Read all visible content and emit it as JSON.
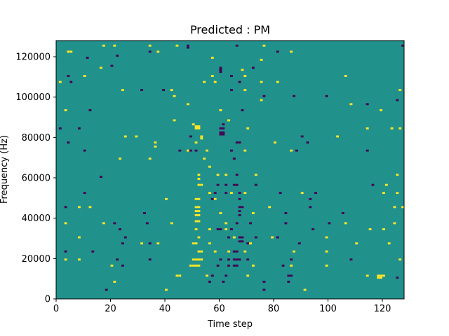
{
  "chart_data": {
    "type": "heatmap",
    "title": "Predicted : PM",
    "xlabel": "Time step",
    "ylabel": "Frequency (Hz)",
    "xlim": [
      0,
      128
    ],
    "ylim": [
      0,
      128000
    ],
    "xticks": [
      0,
      20,
      40,
      60,
      80,
      100,
      120
    ],
    "yticks": [
      0,
      20000,
      40000,
      60000,
      80000,
      100000,
      120000
    ],
    "grid": false,
    "legend": "none",
    "colors": {
      "background": "#21918c",
      "high": "#fde725",
      "low": "#440154"
    },
    "n_time_steps": 128,
    "n_freq_bins": 128,
    "bin_width_hz": 1000,
    "cells": [
      {
        "t": 17,
        "f": 125,
        "v": 1
      },
      {
        "t": 21,
        "f": 125,
        "v": 1
      },
      {
        "t": 34,
        "f": 125,
        "v": 1
      },
      {
        "t": 44,
        "f": 125,
        "v": 1
      },
      {
        "t": 48,
        "f": 125,
        "v": -1
      },
      {
        "t": 48,
        "f": 124,
        "v": -1
      },
      {
        "t": 66,
        "f": 125,
        "v": -1
      },
      {
        "t": 76,
        "f": 125,
        "v": 1
      },
      {
        "t": 127,
        "f": 125,
        "v": -1
      },
      {
        "t": 4,
        "f": 122,
        "v": 1
      },
      {
        "t": 5,
        "f": 122,
        "v": 1
      },
      {
        "t": 34,
        "f": 122,
        "v": -1
      },
      {
        "t": 37,
        "f": 122,
        "v": 1
      },
      {
        "t": 81,
        "f": 122,
        "v": -1
      },
      {
        "t": 86,
        "f": 122,
        "v": 1
      },
      {
        "t": 22,
        "f": 120,
        "v": -1
      },
      {
        "t": 11,
        "f": 119,
        "v": -1
      },
      {
        "t": 57,
        "f": 119,
        "v": 1
      },
      {
        "t": 75,
        "f": 118,
        "v": 1
      },
      {
        "t": 20,
        "f": 115,
        "v": -1
      },
      {
        "t": 16,
        "f": 114,
        "v": 1
      },
      {
        "t": 60,
        "f": 114,
        "v": -1
      },
      {
        "t": 60,
        "f": 113,
        "v": -1
      },
      {
        "t": 60,
        "f": 112,
        "v": -1
      },
      {
        "t": 68,
        "f": 113,
        "v": 1
      },
      {
        "t": 72,
        "f": 114,
        "v": -1
      },
      {
        "t": 4,
        "f": 110,
        "v": -1
      },
      {
        "t": 10,
        "f": 110,
        "v": 1
      },
      {
        "t": 57,
        "f": 110,
        "v": 1
      },
      {
        "t": 64,
        "f": 110,
        "v": -1
      },
      {
        "t": 69,
        "f": 110,
        "v": 1
      },
      {
        "t": 106,
        "f": 110,
        "v": 1
      },
      {
        "t": 1,
        "f": 107,
        "v": 1
      },
      {
        "t": 5,
        "f": 107,
        "v": -1
      },
      {
        "t": 54,
        "f": 107,
        "v": 1
      },
      {
        "t": 58,
        "f": 107,
        "v": 1
      },
      {
        "t": 67,
        "f": 107,
        "v": -1
      },
      {
        "t": 75,
        "f": 107,
        "v": 1
      },
      {
        "t": 81,
        "f": 107,
        "v": 1
      },
      {
        "t": 24,
        "f": 103,
        "v": 1
      },
      {
        "t": 31,
        "f": 103,
        "v": -1
      },
      {
        "t": 39,
        "f": 103,
        "v": -1
      },
      {
        "t": 42,
        "f": 103,
        "v": 1
      },
      {
        "t": 64,
        "f": 103,
        "v": -1
      },
      {
        "t": 69,
        "f": 103,
        "v": 1
      },
      {
        "t": 126,
        "f": 103,
        "v": 1
      },
      {
        "t": 43,
        "f": 100,
        "v": 1
      },
      {
        "t": 76,
        "f": 100,
        "v": -1
      },
      {
        "t": 87,
        "f": 100,
        "v": -1
      },
      {
        "t": 99,
        "f": 100,
        "v": -1
      },
      {
        "t": 75,
        "f": 98,
        "v": 1
      },
      {
        "t": 125,
        "f": 98,
        "v": -1
      },
      {
        "t": 48,
        "f": 96,
        "v": 1
      },
      {
        "t": 108,
        "f": 96,
        "v": 1
      },
      {
        "t": 114,
        "f": 96,
        "v": -1
      },
      {
        "t": 3,
        "f": 93,
        "v": 1
      },
      {
        "t": 12,
        "f": 93,
        "v": -1
      },
      {
        "t": 60,
        "f": 93,
        "v": 1
      },
      {
        "t": 68,
        "f": 93,
        "v": -1
      },
      {
        "t": 119,
        "f": 93,
        "v": 1
      },
      {
        "t": 43,
        "f": 88,
        "v": 1
      },
      {
        "t": 63,
        "f": 88,
        "v": 1
      },
      {
        "t": 50,
        "f": 86,
        "v": 1
      },
      {
        "t": 61,
        "f": 86,
        "v": -1
      },
      {
        "t": 1,
        "f": 84,
        "v": -1
      },
      {
        "t": 8,
        "f": 84,
        "v": -1
      },
      {
        "t": 51,
        "f": 85,
        "v": 1
      },
      {
        "t": 52,
        "f": 85,
        "v": 1
      },
      {
        "t": 51,
        "f": 84,
        "v": 1
      },
      {
        "t": 52,
        "f": 84,
        "v": 1
      },
      {
        "t": 60,
        "f": 84,
        "v": -1
      },
      {
        "t": 61,
        "f": 84,
        "v": -1
      },
      {
        "t": 60,
        "f": 82,
        "v": -1
      },
      {
        "t": 61,
        "f": 82,
        "v": -1
      },
      {
        "t": 60,
        "f": 81,
        "v": -1
      },
      {
        "t": 61,
        "f": 81,
        "v": -1
      },
      {
        "t": 70,
        "f": 84,
        "v": 1
      },
      {
        "t": 114,
        "f": 84,
        "v": 1
      },
      {
        "t": 123,
        "f": 84,
        "v": 1
      },
      {
        "t": 126,
        "f": 84,
        "v": 1
      },
      {
        "t": 25,
        "f": 80,
        "v": 1
      },
      {
        "t": 29,
        "f": 80,
        "v": 1
      },
      {
        "t": 49,
        "f": 80,
        "v": -1
      },
      {
        "t": 53,
        "f": 80,
        "v": 1
      },
      {
        "t": 53,
        "f": 79,
        "v": 1
      },
      {
        "t": 90,
        "f": 80,
        "v": -1
      },
      {
        "t": 103,
        "f": 80,
        "v": 1
      },
      {
        "t": 4,
        "f": 77,
        "v": -1
      },
      {
        "t": 36,
        "f": 77,
        "v": 1
      },
      {
        "t": 36,
        "f": 75,
        "v": 1
      },
      {
        "t": 51,
        "f": 77,
        "v": 1
      },
      {
        "t": 66,
        "f": 77,
        "v": -1
      },
      {
        "t": 67,
        "f": 77,
        "v": -1
      },
      {
        "t": 80,
        "f": 77,
        "v": 1
      },
      {
        "t": 92,
        "f": 77,
        "v": -1
      },
      {
        "t": 10,
        "f": 73,
        "v": -1
      },
      {
        "t": 45,
        "f": 73,
        "v": -1
      },
      {
        "t": 48,
        "f": 73,
        "v": 1
      },
      {
        "t": 49,
        "f": 73,
        "v": -1
      },
      {
        "t": 51,
        "f": 73,
        "v": -1
      },
      {
        "t": 55,
        "f": 73,
        "v": 1
      },
      {
        "t": 64,
        "f": 73,
        "v": -1
      },
      {
        "t": 69,
        "f": 73,
        "v": 1
      },
      {
        "t": 86,
        "f": 73,
        "v": 1
      },
      {
        "t": 88,
        "f": 73,
        "v": -1
      },
      {
        "t": 114,
        "f": 73,
        "v": -1
      },
      {
        "t": 23,
        "f": 69,
        "v": 1
      },
      {
        "t": 34,
        "f": 69,
        "v": 1
      },
      {
        "t": 54,
        "f": 69,
        "v": 1
      },
      {
        "t": 65,
        "f": 69,
        "v": -1
      },
      {
        "t": 56,
        "f": 65,
        "v": 1
      },
      {
        "t": 52,
        "f": 61,
        "v": 1
      },
      {
        "t": 59,
        "f": 61,
        "v": 1
      },
      {
        "t": 62,
        "f": 61,
        "v": 1
      },
      {
        "t": 66,
        "f": 61,
        "v": -1
      },
      {
        "t": 73,
        "f": 61,
        "v": 1
      },
      {
        "t": 125,
        "f": 61,
        "v": 1
      },
      {
        "t": 16,
        "f": 60,
        "v": -1
      },
      {
        "t": 52,
        "f": 59,
        "v": 1
      },
      {
        "t": 53,
        "f": 56,
        "v": 1
      },
      {
        "t": 52,
        "f": 56,
        "v": 1
      },
      {
        "t": 59,
        "f": 56,
        "v": -1
      },
      {
        "t": 62,
        "f": 56,
        "v": -1
      },
      {
        "t": 65,
        "f": 56,
        "v": -1
      },
      {
        "t": 66,
        "f": 56,
        "v": -1
      },
      {
        "t": 73,
        "f": 56,
        "v": -1
      },
      {
        "t": 116,
        "f": 56,
        "v": -1
      },
      {
        "t": 121,
        "f": 56,
        "v": 1
      },
      {
        "t": 10,
        "f": 52,
        "v": -1
      },
      {
        "t": 56,
        "f": 52,
        "v": 1
      },
      {
        "t": 58,
        "f": 52,
        "v": -1
      },
      {
        "t": 62,
        "f": 52,
        "v": -1
      },
      {
        "t": 64,
        "f": 52,
        "v": 1
      },
      {
        "t": 67,
        "f": 52,
        "v": -1
      },
      {
        "t": 69,
        "f": 52,
        "v": 1
      },
      {
        "t": 82,
        "f": 52,
        "v": -1
      },
      {
        "t": 90,
        "f": 52,
        "v": 1
      },
      {
        "t": 95,
        "f": 52,
        "v": -1
      },
      {
        "t": 120,
        "f": 52,
        "v": 1
      },
      {
        "t": 125,
        "f": 52,
        "v": 1
      },
      {
        "t": 40,
        "f": 49,
        "v": 1
      },
      {
        "t": 51,
        "f": 49,
        "v": 1
      },
      {
        "t": 52,
        "f": 49,
        "v": 1
      },
      {
        "t": 57,
        "f": 49,
        "v": -1
      },
      {
        "t": 58,
        "f": 49,
        "v": 1
      },
      {
        "t": 67,
        "f": 49,
        "v": -1
      },
      {
        "t": 93,
        "f": 49,
        "v": -1
      },
      {
        "t": 3,
        "f": 45,
        "v": -1
      },
      {
        "t": 8,
        "f": 45,
        "v": 1
      },
      {
        "t": 12,
        "f": 45,
        "v": 1
      },
      {
        "t": 51,
        "f": 45,
        "v": 1
      },
      {
        "t": 52,
        "f": 45,
        "v": 1
      },
      {
        "t": 51,
        "f": 43,
        "v": 1
      },
      {
        "t": 52,
        "f": 43,
        "v": 1
      },
      {
        "t": 51,
        "f": 41,
        "v": 1
      },
      {
        "t": 52,
        "f": 41,
        "v": 1
      },
      {
        "t": 67,
        "f": 45,
        "v": -1
      },
      {
        "t": 68,
        "f": 45,
        "v": -1
      },
      {
        "t": 67,
        "f": 43,
        "v": -1
      },
      {
        "t": 67,
        "f": 41,
        "v": -1
      },
      {
        "t": 78,
        "f": 45,
        "v": 1
      },
      {
        "t": 93,
        "f": 45,
        "v": -1
      },
      {
        "t": 124,
        "f": 45,
        "v": 1
      },
      {
        "t": 127,
        "f": 45,
        "v": 1
      },
      {
        "t": 32,
        "f": 42,
        "v": -1
      },
      {
        "t": 60,
        "f": 42,
        "v": 1
      },
      {
        "t": 72,
        "f": 42,
        "v": 1
      },
      {
        "t": 84,
        "f": 42,
        "v": -1
      },
      {
        "t": 105,
        "f": 42,
        "v": -1
      },
      {
        "t": 3,
        "f": 37,
        "v": 1
      },
      {
        "t": 17,
        "f": 37,
        "v": 1
      },
      {
        "t": 21,
        "f": 37,
        "v": -1
      },
      {
        "t": 33,
        "f": 37,
        "v": -1
      },
      {
        "t": 42,
        "f": 37,
        "v": 1
      },
      {
        "t": 51,
        "f": 38,
        "v": 1
      },
      {
        "t": 52,
        "f": 38,
        "v": 1
      },
      {
        "t": 62,
        "f": 37,
        "v": 1
      },
      {
        "t": 66,
        "f": 37,
        "v": -1
      },
      {
        "t": 71,
        "f": 37,
        "v": -1
      },
      {
        "t": 84,
        "f": 37,
        "v": -1
      },
      {
        "t": 100,
        "f": 37,
        "v": -1
      },
      {
        "t": 106,
        "f": 37,
        "v": 1
      },
      {
        "t": 124,
        "f": 37,
        "v": 1
      },
      {
        "t": 23,
        "f": 34,
        "v": -1
      },
      {
        "t": 51,
        "f": 34,
        "v": 1
      },
      {
        "t": 56,
        "f": 34,
        "v": 1
      },
      {
        "t": 59,
        "f": 34,
        "v": -1
      },
      {
        "t": 60,
        "f": 34,
        "v": -1
      },
      {
        "t": 62,
        "f": 34,
        "v": 1
      },
      {
        "t": 64,
        "f": 34,
        "v": -1
      },
      {
        "t": 94,
        "f": 34,
        "v": -1
      },
      {
        "t": 115,
        "f": 34,
        "v": 1
      },
      {
        "t": 120,
        "f": 34,
        "v": 1
      },
      {
        "t": 8,
        "f": 30,
        "v": 1
      },
      {
        "t": 25,
        "f": 30,
        "v": -1
      },
      {
        "t": 52,
        "f": 30,
        "v": 1
      },
      {
        "t": 63,
        "f": 30,
        "v": -1
      },
      {
        "t": 65,
        "f": 30,
        "v": 1
      },
      {
        "t": 67,
        "f": 30,
        "v": -1
      },
      {
        "t": 68,
        "f": 30,
        "v": -1
      },
      {
        "t": 67,
        "f": 28,
        "v": -1
      },
      {
        "t": 68,
        "f": 28,
        "v": -1
      },
      {
        "t": 73,
        "f": 30,
        "v": -1
      },
      {
        "t": 79,
        "f": 30,
        "v": 1
      },
      {
        "t": 81,
        "f": 30,
        "v": -1
      },
      {
        "t": 99,
        "f": 30,
        "v": 1
      },
      {
        "t": 24,
        "f": 27,
        "v": -1
      },
      {
        "t": 31,
        "f": 27,
        "v": 1
      },
      {
        "t": 34,
        "f": 27,
        "v": -1
      },
      {
        "t": 37,
        "f": 27,
        "v": 1
      },
      {
        "t": 50,
        "f": 27,
        "v": 1
      },
      {
        "t": 51,
        "f": 27,
        "v": 1
      },
      {
        "t": 56,
        "f": 27,
        "v": 1
      },
      {
        "t": 70,
        "f": 27,
        "v": -1
      },
      {
        "t": 71,
        "f": 27,
        "v": 1
      },
      {
        "t": 89,
        "f": 27,
        "v": -1
      },
      {
        "t": 110,
        "f": 27,
        "v": 1
      },
      {
        "t": 122,
        "f": 27,
        "v": 1
      },
      {
        "t": 3,
        "f": 23,
        "v": -1
      },
      {
        "t": 13,
        "f": 23,
        "v": -1
      },
      {
        "t": 52,
        "f": 23,
        "v": 1
      },
      {
        "t": 53,
        "f": 23,
        "v": 1
      },
      {
        "t": 58,
        "f": 23,
        "v": 1
      },
      {
        "t": 63,
        "f": 23,
        "v": 1
      },
      {
        "t": 65,
        "f": 23,
        "v": -1
      },
      {
        "t": 66,
        "f": 23,
        "v": -1
      },
      {
        "t": 69,
        "f": 23,
        "v": 1
      },
      {
        "t": 87,
        "f": 23,
        "v": 1
      },
      {
        "t": 99,
        "f": 23,
        "v": 1
      },
      {
        "t": 3,
        "f": 19,
        "v": 1
      },
      {
        "t": 8,
        "f": 19,
        "v": 1
      },
      {
        "t": 22,
        "f": 19,
        "v": -1
      },
      {
        "t": 34,
        "f": 19,
        "v": -1
      },
      {
        "t": 50,
        "f": 19,
        "v": 1
      },
      {
        "t": 51,
        "f": 19,
        "v": 1
      },
      {
        "t": 52,
        "f": 19,
        "v": 1
      },
      {
        "t": 53,
        "f": 19,
        "v": 1
      },
      {
        "t": 60,
        "f": 19,
        "v": -1
      },
      {
        "t": 63,
        "f": 19,
        "v": -1
      },
      {
        "t": 65,
        "f": 19,
        "v": -1
      },
      {
        "t": 66,
        "f": 19,
        "v": -1
      },
      {
        "t": 67,
        "f": 19,
        "v": -1
      },
      {
        "t": 70,
        "f": 19,
        "v": -1
      },
      {
        "t": 86,
        "f": 19,
        "v": -1
      },
      {
        "t": 108,
        "f": 19,
        "v": -1
      },
      {
        "t": 126,
        "f": 19,
        "v": 1
      },
      {
        "t": 20,
        "f": 16,
        "v": 1
      },
      {
        "t": 24,
        "f": 16,
        "v": -1
      },
      {
        "t": 49,
        "f": 16,
        "v": 1
      },
      {
        "t": 50,
        "f": 16,
        "v": 1
      },
      {
        "t": 51,
        "f": 16,
        "v": 1
      },
      {
        "t": 52,
        "f": 16,
        "v": 1
      },
      {
        "t": 59,
        "f": 16,
        "v": -1
      },
      {
        "t": 63,
        "f": 16,
        "v": -1
      },
      {
        "t": 65,
        "f": 16,
        "v": -1
      },
      {
        "t": 66,
        "f": 16,
        "v": -1
      },
      {
        "t": 72,
        "f": 16,
        "v": 1
      },
      {
        "t": 83,
        "f": 16,
        "v": -1
      },
      {
        "t": 86,
        "f": 16,
        "v": 1
      },
      {
        "t": 99,
        "f": 16,
        "v": 1
      },
      {
        "t": 44,
        "f": 11,
        "v": 1
      },
      {
        "t": 45,
        "f": 11,
        "v": 1
      },
      {
        "t": 55,
        "f": 11,
        "v": 1
      },
      {
        "t": 57,
        "f": 11,
        "v": -1
      },
      {
        "t": 62,
        "f": 11,
        "v": -1
      },
      {
        "t": 70,
        "f": 11,
        "v": 1
      },
      {
        "t": 85,
        "f": 11,
        "v": -1
      },
      {
        "t": 86,
        "f": 11,
        "v": -1
      },
      {
        "t": 114,
        "f": 11,
        "v": 1
      },
      {
        "t": 118,
        "f": 11,
        "v": 1
      },
      {
        "t": 119,
        "f": 11,
        "v": 1
      },
      {
        "t": 120,
        "f": 11,
        "v": 1
      },
      {
        "t": 118,
        "f": 10,
        "v": 1
      },
      {
        "t": 119,
        "f": 10,
        "v": 1
      },
      {
        "t": 125,
        "f": 10,
        "v": -1
      },
      {
        "t": 21,
        "f": 8,
        "v": 1
      },
      {
        "t": 56,
        "f": 8,
        "v": -1
      },
      {
        "t": 61,
        "f": 8,
        "v": -1
      },
      {
        "t": 76,
        "f": 8,
        "v": -1
      },
      {
        "t": 85,
        "f": 8,
        "v": -1
      },
      {
        "t": 18,
        "f": 4,
        "v": -1
      },
      {
        "t": 40,
        "f": 4,
        "v": 1
      },
      {
        "t": 76,
        "f": 4,
        "v": -1
      },
      {
        "t": 91,
        "f": 4,
        "v": 1
      }
    ]
  }
}
